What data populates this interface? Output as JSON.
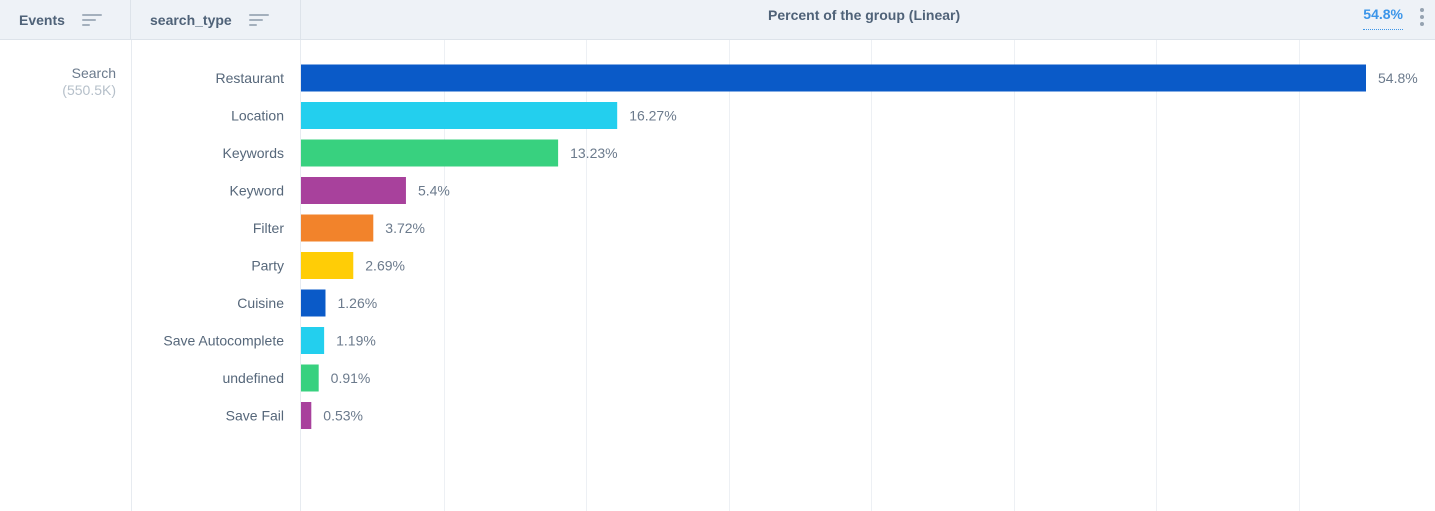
{
  "header": {
    "events_label": "Events",
    "type_label": "search_type",
    "metric_title": "Percent of the group (Linear)",
    "metric_value": "54.8%"
  },
  "event": {
    "name": "Search",
    "count": "(550.5K)"
  },
  "chart_data": {
    "type": "bar",
    "orientation": "horizontal",
    "categories": [
      "Restaurant",
      "Location",
      "Keywords",
      "Keyword",
      "Filter",
      "Party",
      "Cuisine",
      "Save Autocomplete",
      "undefined",
      "Save Fail"
    ],
    "values": [
      54.8,
      16.27,
      13.23,
      5.4,
      3.72,
      2.69,
      1.26,
      1.19,
      0.91,
      0.53
    ],
    "value_labels": [
      "54.8%",
      "16.27%",
      "13.23%",
      "5.4%",
      "3.72%",
      "2.69%",
      "1.26%",
      "1.19%",
      "0.91%",
      "0.53%"
    ],
    "colors": [
      "#0a5ac8",
      "#23cfee",
      "#38d17f",
      "#a8419c",
      "#f2832b",
      "#ffcd06",
      "#0a5ac8",
      "#23cfee",
      "#38d17f",
      "#a8419c"
    ],
    "title": "Percent of the group (Linear)",
    "xlim": [
      0,
      54.8
    ],
    "grid": true,
    "legend": "none"
  }
}
